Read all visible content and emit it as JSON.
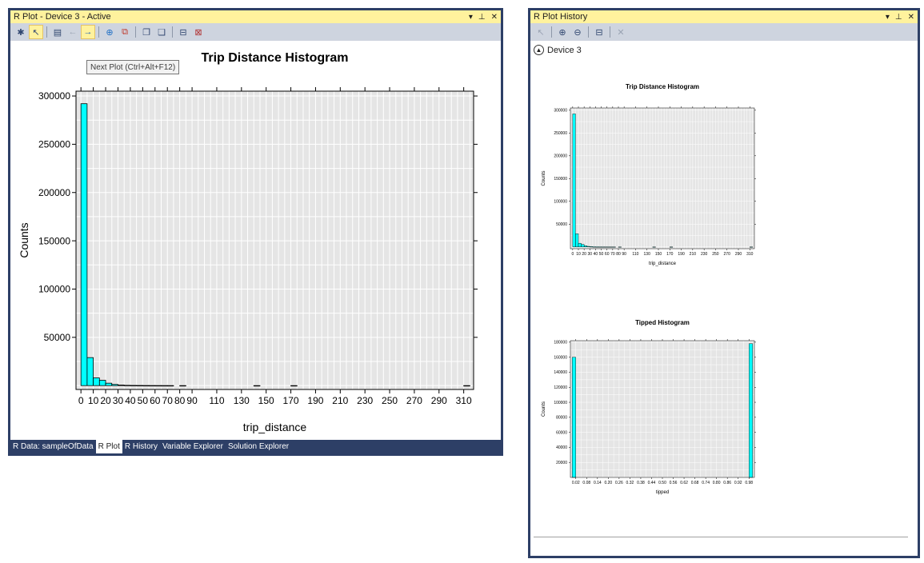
{
  "plot_window": {
    "title": "R Plot - Device 3 - Active",
    "title_buttons": [
      "▾",
      "⊥",
      "✕"
    ],
    "tooltip": "Next Plot (Ctrl+Alt+F12)",
    "tabs": [
      "R Data: sampleOfData",
      "R Plot",
      "R History",
      "Variable Explorer",
      "Solution Explorer"
    ]
  },
  "history_window": {
    "title": "R Plot History",
    "title_buttons": [
      "▾",
      "⊥",
      "✕"
    ],
    "device_label": "Device 3"
  },
  "icons": {
    "new-plot": "new-plot-icon",
    "select": "pointer-icon",
    "export": "export-icon",
    "prev": "arrow-left-icon",
    "next": "arrow-right-icon",
    "web": "globe-icon",
    "pdf": "pdf-icon",
    "copy": "copy-icon",
    "copy-meta": "copy-metafile-icon",
    "remove": "remove-plot-icon",
    "clear": "clear-all-icon",
    "zoom-in": "zoom-in-icon",
    "zoom-out": "zoom-out-icon",
    "auto": "auto-hide-icon",
    "delete": "delete-icon"
  },
  "colors": {
    "titlebar_active": "#fff29d",
    "frame": "#2d3f66",
    "toolbar": "#ced4df",
    "plot_panel": "#e5e5e5",
    "bar_fill": "#00ffff"
  },
  "chart_data": [
    {
      "type": "bar",
      "title": "Trip Distance Histogram",
      "xlabel": "trip_distance",
      "ylabel": "Counts",
      "xlim": [
        -4,
        318
      ],
      "ylim": [
        -4000,
        305000
      ],
      "xticks": [
        0,
        10,
        20,
        30,
        40,
        50,
        60,
        70,
        80,
        90,
        110,
        130,
        150,
        170,
        190,
        210,
        230,
        250,
        270,
        290,
        310
      ],
      "xtick_labels": [
        "0",
        "10",
        "20",
        "30",
        "40",
        "50",
        "60",
        "70",
        "80",
        "90",
        "110",
        "130",
        "150",
        "170",
        "190",
        "210",
        "230",
        "250",
        "270",
        "290",
        "310"
      ],
      "yticks": [
        50000,
        100000,
        150000,
        200000,
        250000,
        300000
      ],
      "ytick_labels": [
        "50000",
        "100000",
        "150000",
        "200000",
        "250000",
        "300000"
      ],
      "bin_width": 5,
      "bins": [
        {
          "x0": 0,
          "count": 292000
        },
        {
          "x0": 5,
          "count": 29000
        },
        {
          "x0": 10,
          "count": 8000
        },
        {
          "x0": 15,
          "count": 5500
        },
        {
          "x0": 20,
          "count": 2500
        },
        {
          "x0": 25,
          "count": 1200
        },
        {
          "x0": 30,
          "count": 600
        },
        {
          "x0": 35,
          "count": 300
        },
        {
          "x0": 40,
          "count": 200
        },
        {
          "x0": 45,
          "count": 150
        },
        {
          "x0": 50,
          "count": 100
        },
        {
          "x0": 55,
          "count": 80
        },
        {
          "x0": 60,
          "count": 60
        },
        {
          "x0": 65,
          "count": 40
        },
        {
          "x0": 70,
          "count": 30
        },
        {
          "x0": 80,
          "count": 20
        },
        {
          "x0": 140,
          "count": 10
        },
        {
          "x0": 170,
          "count": 10
        },
        {
          "x0": 310,
          "count": 10
        }
      ]
    },
    {
      "type": "bar",
      "title": "Trip Distance Histogram",
      "xlabel": "trip_distance",
      "ylabel": "Counts",
      "xlim": [
        -4,
        318
      ],
      "ylim": [
        -4000,
        305000
      ],
      "xticks": [
        0,
        10,
        20,
        30,
        40,
        50,
        60,
        70,
        80,
        90,
        110,
        130,
        150,
        170,
        190,
        210,
        230,
        250,
        270,
        290,
        310
      ],
      "xtick_labels": [
        "0",
        "10",
        "20",
        "30",
        "40",
        "50",
        "60",
        "70",
        "80",
        "90",
        "110",
        "130",
        "150",
        "170",
        "190",
        "210",
        "230",
        "250",
        "270",
        "290",
        "310"
      ],
      "yticks": [
        50000,
        100000,
        150000,
        200000,
        250000,
        300000
      ],
      "ytick_labels": [
        "50000",
        "100000",
        "150000",
        "200000",
        "250000",
        "300000"
      ],
      "bin_width": 5,
      "bins": [
        {
          "x0": 0,
          "count": 292000
        },
        {
          "x0": 5,
          "count": 29000
        },
        {
          "x0": 10,
          "count": 8000
        },
        {
          "x0": 15,
          "count": 5500
        },
        {
          "x0": 20,
          "count": 2500
        },
        {
          "x0": 25,
          "count": 1200
        },
        {
          "x0": 30,
          "count": 600
        },
        {
          "x0": 35,
          "count": 300
        },
        {
          "x0": 40,
          "count": 200
        },
        {
          "x0": 45,
          "count": 150
        },
        {
          "x0": 50,
          "count": 100
        },
        {
          "x0": 55,
          "count": 80
        },
        {
          "x0": 60,
          "count": 60
        },
        {
          "x0": 65,
          "count": 40
        },
        {
          "x0": 70,
          "count": 30
        },
        {
          "x0": 80,
          "count": 20
        },
        {
          "x0": 140,
          "count": 10
        },
        {
          "x0": 170,
          "count": 10
        },
        {
          "x0": 310,
          "count": 10
        }
      ]
    },
    {
      "type": "bar",
      "title": "Tipped Histogram",
      "xlabel": "tipped",
      "ylabel": "Counts",
      "xlim": [
        -0.01,
        1.01
      ],
      "ylim": [
        0,
        182000
      ],
      "xticks": [
        0.02,
        0.08,
        0.14,
        0.2,
        0.26,
        0.32,
        0.38,
        0.44,
        0.5,
        0.56,
        0.62,
        0.68,
        0.74,
        0.8,
        0.86,
        0.92,
        0.98
      ],
      "xtick_labels": [
        "0.02",
        "0.08",
        "0.14",
        "0.20",
        "0.26",
        "0.32",
        "0.38",
        "0.44",
        "0.50",
        "0.56",
        "0.62",
        "0.68",
        "0.74",
        "0.80",
        "0.86",
        "0.92",
        "0.98"
      ],
      "yticks": [
        20000,
        40000,
        60000,
        80000,
        100000,
        120000,
        140000,
        160000,
        180000
      ],
      "ytick_labels": [
        "20000",
        "40000",
        "60000",
        "80000",
        "100000",
        "120000",
        "140000",
        "160000",
        "180000"
      ],
      "bin_width": 0.02,
      "bins": [
        {
          "x0": 0.0,
          "count": 160000
        },
        {
          "x0": 0.98,
          "count": 178000
        }
      ]
    }
  ]
}
